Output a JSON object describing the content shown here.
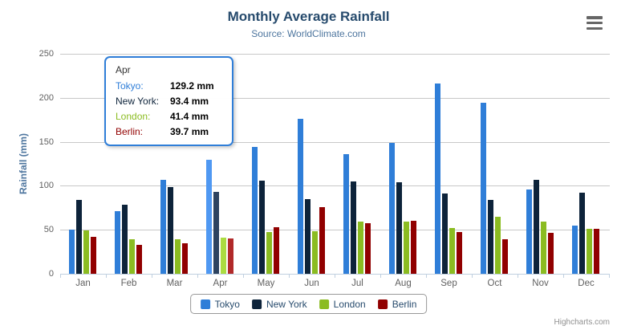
{
  "chart_data": {
    "type": "bar",
    "title": "Monthly Average Rainfall",
    "subtitle": "Source: WorldClimate.com",
    "xlabel": "",
    "ylabel": "Rainfall (mm)",
    "ylim": [
      0,
      250
    ],
    "yticks": [
      0,
      50,
      100,
      150,
      200,
      250
    ],
    "grid": true,
    "legend_position": "bottom",
    "categories": [
      "Jan",
      "Feb",
      "Mar",
      "Apr",
      "May",
      "Jun",
      "Jul",
      "Aug",
      "Sep",
      "Oct",
      "Nov",
      "Dec"
    ],
    "series": [
      {
        "name": "Tokyo",
        "color": "#2f7ed8",
        "hover_color": "#4f98f2",
        "values": [
          49.9,
          71.5,
          106.4,
          129.2,
          144.0,
          176.0,
          135.6,
          148.5,
          216.4,
          194.1,
          95.6,
          54.4
        ]
      },
      {
        "name": "New York",
        "color": "#0d233a",
        "hover_color": "#2d4360",
        "values": [
          83.6,
          78.8,
          98.5,
          93.4,
          106.0,
          84.5,
          105.0,
          104.3,
          91.2,
          83.5,
          106.6,
          92.3
        ]
      },
      {
        "name": "London",
        "color": "#8bbc21",
        "hover_color": "#abdc41",
        "values": [
          48.9,
          38.8,
          39.3,
          41.4,
          47.0,
          48.3,
          59.0,
          59.6,
          52.4,
          65.2,
          59.3,
          51.2
        ]
      },
      {
        "name": "Berlin",
        "color": "#910000",
        "hover_color": "#b12a2a",
        "values": [
          42.4,
          33.2,
          34.5,
          39.7,
          52.6,
          75.5,
          57.4,
          60.4,
          47.6,
          39.1,
          46.8,
          51.1
        ]
      }
    ],
    "hovered_category": "Apr",
    "hovered_index": 3
  },
  "tooltip": {
    "header": "Apr",
    "border_color": "#2f7ed8",
    "rows": [
      {
        "label": "Tokyo:",
        "value": "129.2 mm",
        "color": "#2f7ed8"
      },
      {
        "label": "New York:",
        "value": "93.4 mm",
        "color": "#0d233a"
      },
      {
        "label": "London:",
        "value": "41.4 mm",
        "color": "#8bbc21"
      },
      {
        "label": "Berlin:",
        "value": "39.7 mm",
        "color": "#910000"
      }
    ]
  },
  "credits": {
    "label": "Highcharts.com"
  },
  "colors": {
    "title": "#274b6d",
    "subtitle": "#4d759e",
    "axis_title": "#4d759e",
    "axis_label": "#606060",
    "gridline": "#c8c8c8",
    "axis_line": "#c0d0e0",
    "legend_text": "#274b6d",
    "legend_border": "#999999",
    "credits_text": "#909090",
    "menu_icon": "#666666"
  }
}
